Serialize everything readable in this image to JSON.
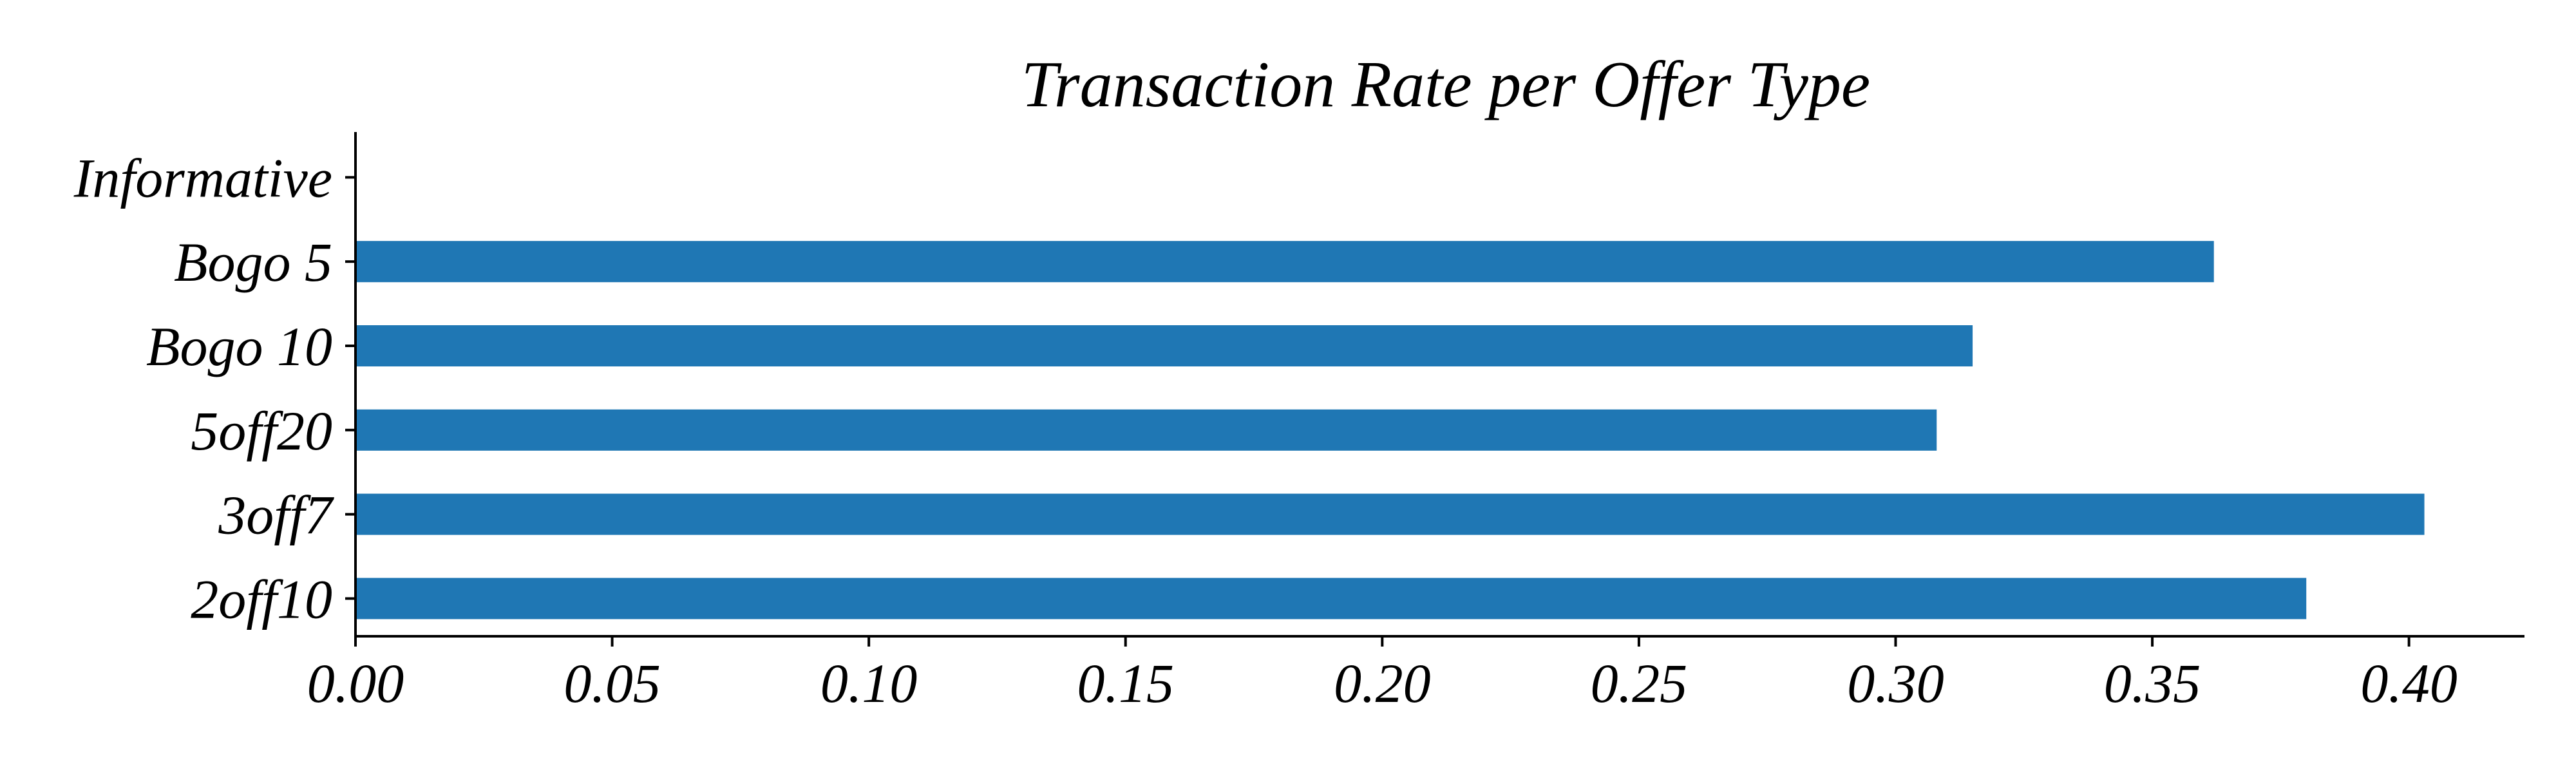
{
  "chart_data": {
    "type": "bar",
    "orientation": "horizontal",
    "title": "Transaction Rate per Offer Type",
    "xlabel": "",
    "ylabel": "",
    "categories": [
      "Informative",
      "Bogo 5",
      "Bogo 10",
      "5off20",
      "3off7",
      "2off10"
    ],
    "values": [
      0.0,
      0.362,
      0.315,
      0.308,
      0.403,
      0.38
    ],
    "xlim": [
      0.0,
      0.4225
    ],
    "xticks": [
      0.0,
      0.05,
      0.1,
      0.15,
      0.2,
      0.25,
      0.3,
      0.35,
      0.4
    ],
    "xtick_labels": [
      "0.00",
      "0.05",
      "0.10",
      "0.15",
      "0.20",
      "0.25",
      "0.30",
      "0.35",
      "0.40"
    ],
    "bar_color": "#1f77b4",
    "grid": false,
    "legend": "none"
  }
}
